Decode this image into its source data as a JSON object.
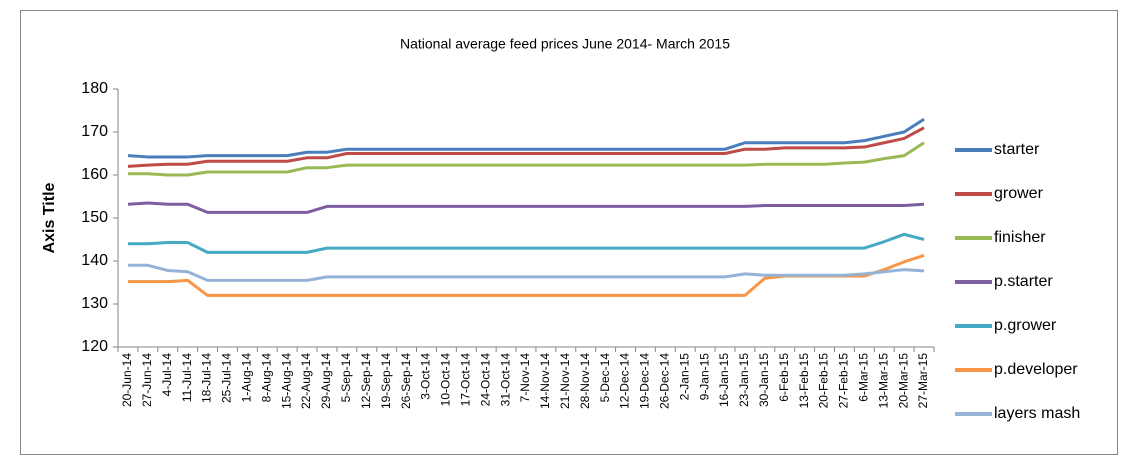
{
  "chart_data": {
    "type": "line",
    "title": "National average feed prices June 2014- March 2015",
    "y_label": "Axis Title",
    "categories": [
      "20-Jun-14",
      "27-Jun-14",
      "4-Jul-14",
      "11-Jul-14",
      "18-Jul-14",
      "25-Jul-14",
      "1-Aug-14",
      "8-Aug-14",
      "15-Aug-14",
      "22-Aug-14",
      "29-Aug-14",
      "5-Sep-14",
      "12-Sep-14",
      "19-Sep-14",
      "26-Sep-14",
      "3-Oct-14",
      "10-Oct-14",
      "17-Oct-14",
      "24-Oct-14",
      "31-Oct-14",
      "7-Nov-14",
      "14-Nov-14",
      "21-Nov-14",
      "28-Nov-14",
      "5-Dec-14",
      "12-Dec-14",
      "19-Dec-14",
      "26-Dec-14",
      "2-Jan-15",
      "9-Jan-15",
      "16-Jan-15",
      "23-Jan-15",
      "30-Jan-15",
      "6-Feb-15",
      "13-Feb-15",
      "20-Feb-15",
      "27-Feb-15",
      "6-Mar-15",
      "13-Mar-15",
      "20-Mar-15",
      "27-Mar-15"
    ],
    "series": [
      {
        "name": "starter",
        "color": "#4a7ebb",
        "values": [
          164.5,
          164.2,
          164.2,
          164.2,
          164.5,
          164.5,
          164.5,
          164.5,
          164.5,
          165.3,
          165.3,
          166,
          166,
          166,
          166,
          166,
          166,
          166,
          166,
          166,
          166,
          166,
          166,
          166,
          166,
          166,
          166,
          166,
          166,
          166,
          166,
          167.5,
          167.5,
          167.5,
          167.5,
          167.5,
          167.5,
          168,
          169,
          170,
          173
        ]
      },
      {
        "name": "grower",
        "color": "#be4b48",
        "values": [
          162,
          162.3,
          162.5,
          162.5,
          163.2,
          163.2,
          163.2,
          163.2,
          163.2,
          164,
          164,
          165,
          165,
          165,
          165,
          165,
          165,
          165,
          165,
          165,
          165,
          165,
          165,
          165,
          165,
          165,
          165,
          165,
          165,
          165,
          165,
          166,
          166,
          166.3,
          166.3,
          166.3,
          166.3,
          166.5,
          167.5,
          168.5,
          171
        ]
      },
      {
        "name": "finisher",
        "color": "#98b954",
        "values": [
          160.3,
          160.3,
          160,
          160,
          160.7,
          160.7,
          160.7,
          160.7,
          160.7,
          161.7,
          161.7,
          162.3,
          162.3,
          162.3,
          162.3,
          162.3,
          162.3,
          162.3,
          162.3,
          162.3,
          162.3,
          162.3,
          162.3,
          162.3,
          162.3,
          162.3,
          162.3,
          162.3,
          162.3,
          162.3,
          162.3,
          162.3,
          162.5,
          162.5,
          162.5,
          162.5,
          162.8,
          163,
          163.8,
          164.5,
          167.5
        ]
      },
      {
        "name": "p.starter",
        "color": "#7d5fa0",
        "values": [
          153.2,
          153.5,
          153.2,
          153.2,
          151.3,
          151.3,
          151.3,
          151.3,
          151.3,
          151.3,
          152.7,
          152.7,
          152.7,
          152.7,
          152.7,
          152.7,
          152.7,
          152.7,
          152.7,
          152.7,
          152.7,
          152.7,
          152.7,
          152.7,
          152.7,
          152.7,
          152.7,
          152.7,
          152.7,
          152.7,
          152.7,
          152.7,
          152.9,
          152.9,
          152.9,
          152.9,
          152.9,
          152.9,
          152.9,
          152.9,
          153.2
        ]
      },
      {
        "name": "p.grower",
        "color": "#46aac5",
        "values": [
          144,
          144,
          144.3,
          144.3,
          142,
          142,
          142,
          142,
          142,
          142,
          143,
          143,
          143,
          143,
          143,
          143,
          143,
          143,
          143,
          143,
          143,
          143,
          143,
          143,
          143,
          143,
          143,
          143,
          143,
          143,
          143,
          143,
          143,
          143,
          143,
          143,
          143,
          143,
          144.5,
          146.2,
          145
        ]
      },
      {
        "name": "p.developer",
        "color": "#f79646",
        "values": [
          135.2,
          135.2,
          135.2,
          135.5,
          132,
          132,
          132,
          132,
          132,
          132,
          132,
          132,
          132,
          132,
          132,
          132,
          132,
          132,
          132,
          132,
          132,
          132,
          132,
          132,
          132,
          132,
          132,
          132,
          132,
          132,
          132,
          132,
          136,
          136.5,
          136.5,
          136.5,
          136.5,
          136.5,
          138,
          139.8,
          141.3
        ]
      },
      {
        "name": "layers mash",
        "color": "#95b3d7",
        "values": [
          139,
          139,
          137.8,
          137.5,
          135.5,
          135.5,
          135.5,
          135.5,
          135.5,
          135.5,
          136.3,
          136.3,
          136.3,
          136.3,
          136.3,
          136.3,
          136.3,
          136.3,
          136.3,
          136.3,
          136.3,
          136.3,
          136.3,
          136.3,
          136.3,
          136.3,
          136.3,
          136.3,
          136.3,
          136.3,
          136.3,
          137,
          136.7,
          136.7,
          136.7,
          136.7,
          136.7,
          137,
          137.5,
          138,
          137.7
        ]
      }
    ],
    "ylim": [
      120,
      180
    ],
    "yticks": [
      120,
      130,
      140,
      150,
      160,
      170,
      180
    ],
    "grid": false,
    "legend": "right"
  }
}
